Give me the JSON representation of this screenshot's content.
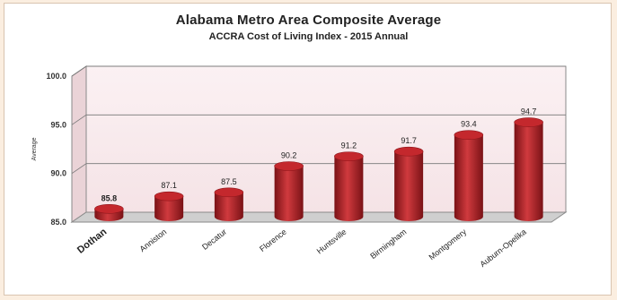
{
  "chart_data": {
    "type": "bar",
    "title": "Alabama Metro Area Composite Average",
    "subtitle": "ACCRA Cost of Living Index - 2015 Annual",
    "ylabel": "Average",
    "xlabel": "",
    "ylim": [
      85,
      100
    ],
    "yticks": [
      "85.0",
      "90.0",
      "95.0",
      "100.0"
    ],
    "categories": [
      "Dothan",
      "Anniston",
      "Decatur",
      "Florence",
      "Huntsville",
      "Birmingham",
      "Montgomery",
      "Auburn-Opelika"
    ],
    "values": [
      85.8,
      87.1,
      87.5,
      90.2,
      91.2,
      91.7,
      93.4,
      94.7
    ],
    "data_labels": [
      "85.8",
      "87.1",
      "87.5",
      "90.2",
      "91.2",
      "91.7",
      "93.4",
      "94.7"
    ],
    "highlight_category": "Dothan",
    "grid": true,
    "legend": "none",
    "colors": {
      "bar": "#b01f24",
      "bar_dark": "#7a1216",
      "wall": "#f5e3e6",
      "floor": "#cfcfcf"
    }
  }
}
